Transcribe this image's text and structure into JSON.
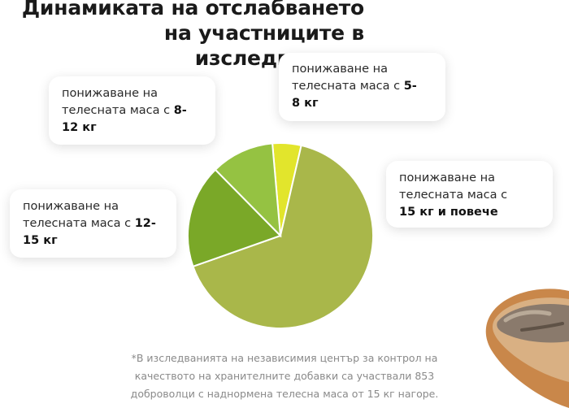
{
  "title_line1": "Динамиката на отслабването на участниците в",
  "title_line2": "изследването:",
  "labels": {
    "card_8_12_prefix": "понижаване на\nтелесната маса с ",
    "card_8_12_bold": "8-\n12 кг",
    "card_5_8_prefix": "понижаване на\nтелесната маса с ",
    "card_5_8_bold": "5-\n8 кг",
    "card_15_prefix": "понижаване на\nтелесната маса с\n",
    "card_15_bold": "15 кг и повече",
    "card_12_15_prefix": "понижаване на\nтелесната маса с ",
    "card_12_15_bold": "12-\n15 кг"
  },
  "footnote": "*В изследванията на независимия център за контрол на\nкачеството на хранителните добавки са участвали 853\nдоброволци с наднормена телесна маса от 15 кг нагоре.",
  "chart_data": {
    "type": "pie",
    "title": "Динамиката на отслабването на участниците в изследването:",
    "slices": [
      {
        "label": "понижаване на телесната маса с 5-8 кг",
        "value": 5,
        "color": "#e2e52c"
      },
      {
        "label": "понижаване на телесната маса с 15 кг и повече",
        "value": 66,
        "color": "#a9b74a"
      },
      {
        "label": "понижаване на телесната маса с 12-15 кг",
        "value": 18,
        "color": "#7aa828"
      },
      {
        "label": "понижаване на телесната маса с 8-12 кг",
        "value": 11,
        "color": "#95c242"
      }
    ],
    "start_angle_deg": -5,
    "legend": "callout-cards"
  },
  "image": {
    "icon": "bread-slice-icon"
  }
}
